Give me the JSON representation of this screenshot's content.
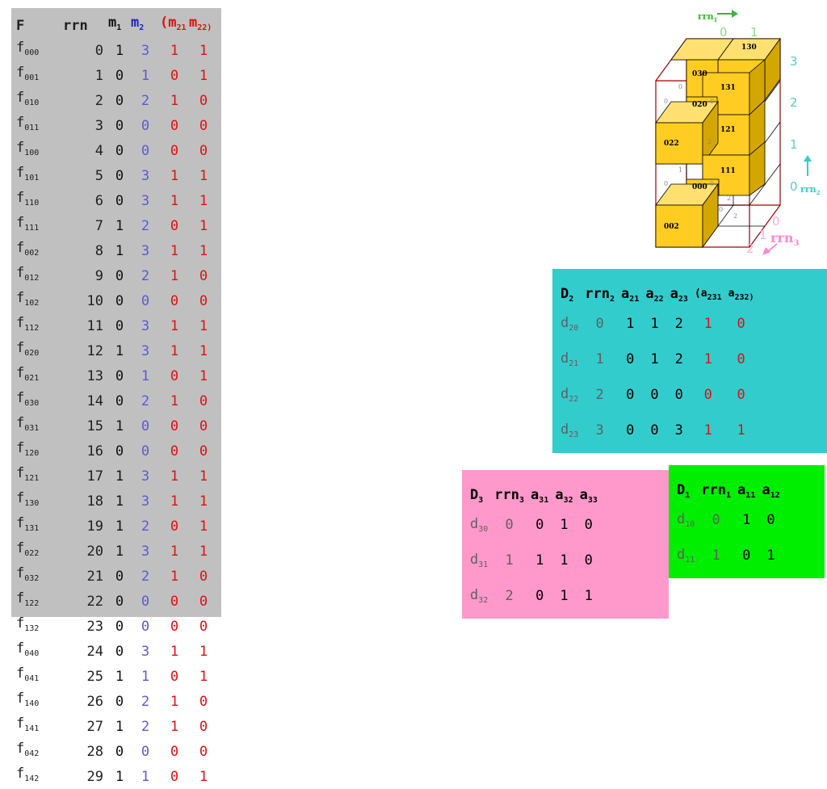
{
  "f_table": {
    "headers": {
      "f": "F",
      "rrn": "rrn",
      "m1": "m",
      "m1_sub": "1",
      "m2": "m",
      "m2_sub": "2",
      "m21": "(m",
      "m21_sub": "21",
      "m22": "m",
      "m22_sub": "22)"
    },
    "rows": [
      {
        "f": "f",
        "sub": "000",
        "rrn": "0",
        "m1": "1",
        "m2": "3",
        "m21": "1",
        "m22": "1"
      },
      {
        "f": "f",
        "sub": "001",
        "rrn": "1",
        "m1": "0",
        "m2": "1",
        "m21": "0",
        "m22": "1"
      },
      {
        "f": "f",
        "sub": "010",
        "rrn": "2",
        "m1": "0",
        "m2": "2",
        "m21": "1",
        "m22": "0"
      },
      {
        "f": "f",
        "sub": "011",
        "rrn": "3",
        "m1": "0",
        "m2": "0",
        "m21": "0",
        "m22": "0"
      },
      {
        "f": "f",
        "sub": "100",
        "rrn": "4",
        "m1": "0",
        "m2": "0",
        "m21": "0",
        "m22": "0"
      },
      {
        "f": "f",
        "sub": "101",
        "rrn": "5",
        "m1": "0",
        "m2": "3",
        "m21": "1",
        "m22": "1"
      },
      {
        "f": "f",
        "sub": "110",
        "rrn": "6",
        "m1": "0",
        "m2": "3",
        "m21": "1",
        "m22": "1"
      },
      {
        "f": "f",
        "sub": "111",
        "rrn": "7",
        "m1": "1",
        "m2": "2",
        "m21": "0",
        "m22": "1"
      },
      {
        "f": "f",
        "sub": "002",
        "rrn": "8",
        "m1": "1",
        "m2": "3",
        "m21": "1",
        "m22": "1"
      },
      {
        "f": "f",
        "sub": "012",
        "rrn": "9",
        "m1": "0",
        "m2": "2",
        "m21": "1",
        "m22": "0"
      },
      {
        "f": "f",
        "sub": "102",
        "rrn": "10",
        "m1": "0",
        "m2": "0",
        "m21": "0",
        "m22": "0"
      },
      {
        "f": "f",
        "sub": "112",
        "rrn": "11",
        "m1": "0",
        "m2": "3",
        "m21": "1",
        "m22": "1"
      },
      {
        "f": "f",
        "sub": "020",
        "rrn": "12",
        "m1": "1",
        "m2": "3",
        "m21": "1",
        "m22": "1"
      },
      {
        "f": "f",
        "sub": "021",
        "rrn": "13",
        "m1": "0",
        "m2": "1",
        "m21": "0",
        "m22": "1"
      },
      {
        "f": "f",
        "sub": "030",
        "rrn": "14",
        "m1": "0",
        "m2": "2",
        "m21": "1",
        "m22": "0"
      },
      {
        "f": "f",
        "sub": "031",
        "rrn": "15",
        "m1": "1",
        "m2": "0",
        "m21": "0",
        "m22": "0"
      },
      {
        "f": "f",
        "sub": "120",
        "rrn": "16",
        "m1": "0",
        "m2": "0",
        "m21": "0",
        "m22": "0"
      },
      {
        "f": "f",
        "sub": "121",
        "rrn": "17",
        "m1": "1",
        "m2": "3",
        "m21": "1",
        "m22": "1"
      },
      {
        "f": "f",
        "sub": "130",
        "rrn": "18",
        "m1": "1",
        "m2": "3",
        "m21": "1",
        "m22": "1"
      },
      {
        "f": "f",
        "sub": "131",
        "rrn": "19",
        "m1": "1",
        "m2": "2",
        "m21": "0",
        "m22": "1"
      },
      {
        "f": "f",
        "sub": "022",
        "rrn": "20",
        "m1": "1",
        "m2": "3",
        "m21": "1",
        "m22": "1"
      },
      {
        "f": "f",
        "sub": "032",
        "rrn": "21",
        "m1": "0",
        "m2": "2",
        "m21": "1",
        "m22": "0"
      },
      {
        "f": "f",
        "sub": "122",
        "rrn": "22",
        "m1": "0",
        "m2": "0",
        "m21": "0",
        "m22": "0"
      },
      {
        "f": "f",
        "sub": "132",
        "rrn": "23",
        "m1": "0",
        "m2": "0",
        "m21": "0",
        "m22": "0"
      },
      {
        "f": "f",
        "sub": "040",
        "rrn": "24",
        "m1": "0",
        "m2": "3",
        "m21": "1",
        "m22": "1"
      },
      {
        "f": "f",
        "sub": "041",
        "rrn": "25",
        "m1": "1",
        "m2": "1",
        "m21": "0",
        "m22": "1"
      },
      {
        "f": "f",
        "sub": "140",
        "rrn": "26",
        "m1": "0",
        "m2": "2",
        "m21": "1",
        "m22": "0"
      },
      {
        "f": "f",
        "sub": "141",
        "rrn": "27",
        "m1": "1",
        "m2": "2",
        "m21": "1",
        "m22": "0"
      },
      {
        "f": "f",
        "sub": "042",
        "rrn": "28",
        "m1": "0",
        "m2": "0",
        "m21": "0",
        "m22": "0"
      },
      {
        "f": "f",
        "sub": "142",
        "rrn": "29",
        "m1": "1",
        "m2": "1",
        "m21": "0",
        "m22": "1"
      }
    ]
  },
  "d2": {
    "headers": [
      {
        "t": "D",
        "s": "2"
      },
      {
        "t": "rrn",
        "s": "2"
      },
      {
        "t": "a",
        "s": "21"
      },
      {
        "t": "a",
        "s": "22"
      },
      {
        "t": "a",
        "s": "23"
      },
      {
        "t": "(a",
        "s": "231"
      },
      {
        "t": "a",
        "s": "232)"
      }
    ],
    "rows": [
      {
        "d": "d",
        "sub": "20",
        "rrn": "0",
        "v": [
          "1",
          "1",
          "2"
        ],
        "r": [
          "1",
          "0"
        ]
      },
      {
        "d": "d",
        "sub": "21",
        "rrn": "1",
        "v": [
          "0",
          "1",
          "2"
        ],
        "r": [
          "1",
          "0"
        ]
      },
      {
        "d": "d",
        "sub": "22",
        "rrn": "2",
        "v": [
          "0",
          "0",
          "0"
        ],
        "r": [
          "0",
          "0"
        ]
      },
      {
        "d": "d",
        "sub": "23",
        "rrn": "3",
        "v": [
          "0",
          "0",
          "3"
        ],
        "r": [
          "1",
          "1"
        ]
      }
    ]
  },
  "d3": {
    "headers": [
      {
        "t": "D",
        "s": "3"
      },
      {
        "t": "rrn",
        "s": "3"
      },
      {
        "t": "a",
        "s": "31"
      },
      {
        "t": "a",
        "s": "32"
      },
      {
        "t": "a",
        "s": "33"
      }
    ],
    "rows": [
      {
        "d": "d",
        "sub": "30",
        "rrn": "0",
        "v": [
          "0",
          "1",
          "0"
        ]
      },
      {
        "d": "d",
        "sub": "31",
        "rrn": "1",
        "v": [
          "1",
          "1",
          "0"
        ]
      },
      {
        "d": "d",
        "sub": "32",
        "rrn": "2",
        "v": [
          "0",
          "1",
          "1"
        ]
      }
    ]
  },
  "d1": {
    "headers": [
      {
        "t": "D",
        "s": "1"
      },
      {
        "t": "rrn",
        "s": "1"
      },
      {
        "t": "a",
        "s": "11"
      },
      {
        "t": "a",
        "s": "12"
      }
    ],
    "rows": [
      {
        "d": "d",
        "sub": "10",
        "rrn": "0",
        "v": [
          "1",
          "0"
        ]
      },
      {
        "d": "d",
        "sub": "11",
        "rrn": "1",
        "v": [
          "0",
          "1"
        ]
      }
    ]
  },
  "cube": {
    "rrn1_label": "rrn",
    "rrn1_sub": "1",
    "rrn2_label": "rrn",
    "rrn2_sub": "2",
    "rrn3_label": "rrn",
    "rrn3_sub": "3",
    "x_ticks": [
      "0",
      "1"
    ],
    "y_ticks": [
      "3",
      "2",
      "1",
      "0"
    ],
    "z_ticks": [
      "0",
      "1",
      "2"
    ],
    "cells": [
      "130",
      "030",
      "131",
      "020",
      "121",
      "022",
      "111",
      "000",
      "002"
    ],
    "faint": [
      "0",
      "0",
      "0",
      "2",
      "1",
      "0",
      "0",
      "0",
      "2",
      "2"
    ],
    "colors": {
      "face": "#ffcc22",
      "side": "#d4a600",
      "top": "#ffe070",
      "frame": "#a00000",
      "green": "#33bb33",
      "cyan": "#33cccc",
      "pink": "#ff88cc"
    }
  }
}
